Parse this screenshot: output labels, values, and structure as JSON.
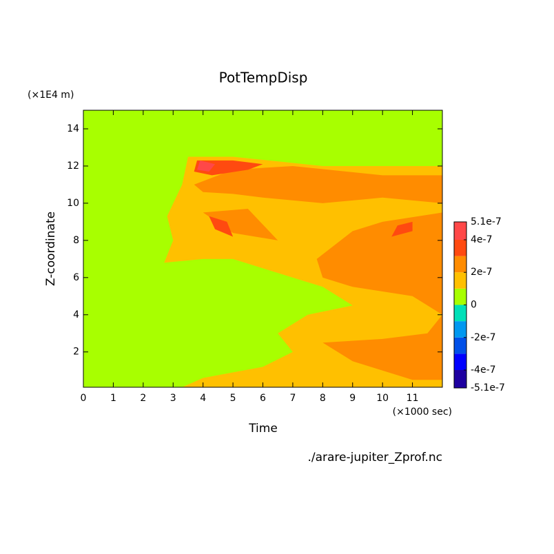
{
  "chart_data": {
    "type": "contour",
    "title": "PotTempDisp",
    "x_label": "Time",
    "x_unit": "(×1000 sec)",
    "y_label": "Z-coordinate",
    "y_unit": "(×1E4 m)",
    "source": "./arare-jupiter_Zprof.nc",
    "xlim": [
      0,
      12
    ],
    "xticks": [
      0,
      1,
      2,
      3,
      4,
      5,
      6,
      7,
      8,
      9,
      10,
      11
    ],
    "ylim": [
      0.1,
      15
    ],
    "yticks": [
      2,
      4,
      6,
      8,
      10,
      12,
      14
    ],
    "levels": [
      -5.1e-07,
      -4e-07,
      -3e-07,
      -2e-07,
      -1e-07,
      0,
      1e-07,
      2e-07,
      3e-07,
      4e-07,
      5.1e-07
    ],
    "colors": [
      "#1e00a0",
      "#0000ff",
      "#0050e8",
      "#0098f0",
      "#00e0b8",
      "#a8ff00",
      "#ffc000",
      "#ff8c00",
      "#ff4a10",
      "#ff4848"
    ],
    "cticks": [
      -5.1e-07,
      -4e-07,
      -2e-07,
      0,
      2e-07,
      4e-07,
      5.1e-07
    ],
    "regions": [
      {
        "value": 5e-08,
        "x": [
          0,
          12,
          12,
          0
        ],
        "y": [
          0.1,
          0.1,
          15,
          15
        ]
      },
      {
        "value": 1.5e-07,
        "x": [
          3.3,
          4,
          6,
          7,
          6.5,
          7.5,
          9,
          8,
          7,
          6,
          5,
          4,
          2.7,
          3,
          2.8,
          3.3,
          3.5,
          5,
          8,
          12,
          12
        ],
        "y": [
          0.1,
          0.6,
          1.2,
          2,
          3,
          4,
          4.5,
          5.5,
          6,
          6.5,
          7,
          7,
          6.8,
          8,
          9.3,
          11,
          12.5,
          12.5,
          12,
          12,
          0.1
        ]
      },
      {
        "value": 2.5e-07,
        "x": [
          3.7,
          5,
          7,
          10,
          12,
          12,
          10,
          8,
          6,
          5,
          4
        ],
        "y": [
          11,
          11.8,
          12,
          11.5,
          11.5,
          10,
          10.3,
          10,
          10.3,
          10.5,
          10.6
        ]
      },
      {
        "value": 2.5e-07,
        "x": [
          7.8,
          9,
          10,
          12,
          12,
          11,
          10,
          9,
          8,
          10,
          11.5,
          12,
          11,
          9,
          8
        ],
        "y": [
          7,
          8.5,
          9,
          9.5,
          0.5,
          0.5,
          1,
          1.5,
          2.5,
          2.7,
          3,
          4,
          5,
          5.5,
          6
        ]
      },
      {
        "value": 2.5e-07,
        "x": [
          4,
          5.5,
          6.5,
          5
        ],
        "y": [
          9.5,
          9.7,
          8,
          8.4
        ]
      },
      {
        "value": 3.5e-07,
        "x": [
          3.8,
          5,
          6,
          5.5,
          4.3,
          3.7
        ],
        "y": [
          12.3,
          12.3,
          12.1,
          11.8,
          11.5,
          11.7
        ]
      },
      {
        "value": 3.5e-07,
        "x": [
          4.2,
          4.8,
          5,
          4.4
        ],
        "y": [
          9.3,
          9,
          8.2,
          8.6
        ]
      },
      {
        "value": 3.5e-07,
        "x": [
          10.5,
          11,
          11,
          10.3
        ],
        "y": [
          8.8,
          9,
          8.5,
          8.2
        ]
      },
      {
        "value": 4.5e-07,
        "x": [
          3.9,
          4.4,
          4.2,
          3.8
        ],
        "y": [
          12.3,
          12.1,
          11.7,
          11.8
        ]
      }
    ]
  }
}
